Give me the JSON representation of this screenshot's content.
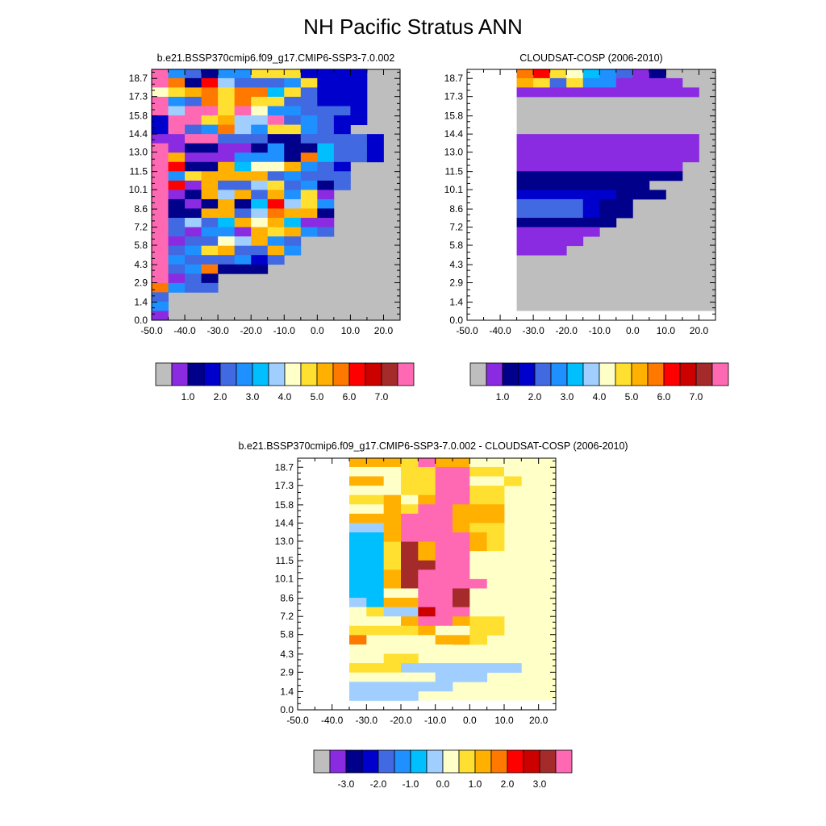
{
  "title": "NH Pacific Stratus ANN",
  "colors": {
    "missing": "#bebebe",
    "fill": [
      "#8a2be2",
      "#00008b",
      "#0000cd",
      "#4169e1",
      "#1e90ff",
      "#00bfff",
      "#a0cfff",
      "#ffffc8",
      "#ffe030",
      "#ffb000",
      "#ff7800",
      "#ff0000",
      "#cd0000",
      "#a52a2a",
      "#ff69b4"
    ]
  },
  "chart_data": [
    {
      "type": "heatmap",
      "title": "b.e21.BSSP370cmip6.f09_g17.CMIP6-SSP3-7.0.002",
      "xticks": [
        "-50.0",
        "-40.0",
        "-30.0",
        "-20.0",
        "-10.0",
        "0.0",
        "10.0",
        "20.0"
      ],
      "yticks": [
        "0.0",
        "1.4",
        "2.9",
        "4.3",
        "5.8",
        "7.2",
        "8.6",
        "10.1",
        "11.5",
        "13.0",
        "14.4",
        "15.8",
        "17.3",
        "18.7"
      ],
      "xlim": [
        -50,
        25
      ],
      "ylim": [
        0,
        19.4
      ],
      "colorbar_labels": [
        "1.0",
        "2.0",
        "3.0",
        "4.0",
        "5.0",
        "6.0",
        "7.0"
      ],
      "grid": {
        "x0": -50,
        "y0": 0,
        "dx": 5,
        "dy": 0.72,
        "ncols": 15,
        "nrows": 27,
        "rows": [
          "PFEDF5LLL0000",
          "PBDJ7EEE5L000",
          "8NKQ9QQ6LC000",
          "PFCQ9Q99EC000",
          "P7PP9P8554CC0",
          "0PP9A77P45C00",
          "0PE5B75995C0",
          "11PP44CDDEEEE0",
          "P1221125DD6CC0",
          "PK111555DB6CC0",
          "PJ22M6IIM5C0",
          "PF9MMMM45CCC",
          "PJ1MCEHNE52C",
          "P1DM7MEA5L1",
          "PD1DMD6J7L5",
          "P2DMM47BMM2",
          "PE7E6K8M611",
          "PE1G51K9AGC",
          "P1EEIHA5E",
          "PE59ACEA5",
          "P5CCC53E",
          "PE5BD2D",
          "P1E2",
          "BFEE",
          "E",
          "5",
          "1"
        ]
      }
    },
    {
      "type": "heatmap",
      "title": "CLOUDSAT-COSP (2006-2010)",
      "xticks": [
        "-50.0",
        "-40.0",
        "-30.0",
        "-20.0",
        "-10.0",
        "0.0",
        "10.0",
        "20.0"
      ],
      "yticks": [
        "0.0",
        "1.4",
        "2.9",
        "4.3",
        "5.8",
        "7.2",
        "8.6",
        "10.1",
        "11.5",
        "13.0",
        "14.4",
        "15.8",
        "17.3",
        "18.7"
      ],
      "xlim": [
        -50,
        25
      ],
      "ylim": [
        0,
        19.4
      ],
      "colorbar_labels": [
        "1.0",
        "2.0",
        "3.0",
        "4.0",
        "5.0",
        "6.0",
        "7.0"
      ],
      "grid": {
        "x0": -35,
        "y0": 0.72,
        "dx": 5,
        "dy": 0.72,
        "ncols": 12,
        "nrows": 26,
        "rows": [
          "AMHI7GBE2",
          "LHBH6GEEEE",
          "1EEEEEEEEEE",
          "",
          "",
          "",
          "",
          "11111111111",
          "11111111111",
          "11111111111",
          "1111111111",
          "2222222222",
          "22222222",
          "333333222",
          "4444322",
          "4444322",
          "222222",
          "11111",
          "1111",
          "111",
          "",
          "",
          "",
          "",
          "",
          ""
        ]
      }
    },
    {
      "type": "heatmap",
      "title": "b.e21.BSSP370cmip6.f09_g17.CMIP6-SSP3-7.0.002 - CLOUDSAT-COSP (2006-2010)",
      "xticks": [
        "-50.0",
        "-40.0",
        "-30.0",
        "-20.0",
        "-10.0",
        "0.0",
        "10.0",
        "20.0"
      ],
      "yticks": [
        "0.0",
        "1.4",
        "2.9",
        "4.3",
        "5.8",
        "7.2",
        "8.6",
        "10.1",
        "11.5",
        "13.0",
        "14.4",
        "15.8",
        "17.3",
        "18.7"
      ],
      "xlim": [
        -50,
        25
      ],
      "ylim": [
        0,
        19.4
      ],
      "colorbar_labels": [
        "-3.0",
        "-2.0",
        "-1.0",
        "0.0",
        "1.0",
        "2.0",
        "3.0"
      ],
      "grid": {
        "x0": -35,
        "y0": 0.72,
        "dx": 5,
        "dy": 0.72,
        "ncols": 12,
        "nrows": 26,
        "rows": [
          "PPPNQLLMMM",
          "MMMNNQQNNM",
          "LLMNNQQMMN",
          "MMMNNQQNN",
          "NNLKPQQNN",
          "MMLNQQPPP",
          "LLPQQQPPP",
          "HHPQQQPNN",
          "GGPQQQQPN",
          "GGNRPQQPN",
          "GGNRPQQMM",
          "GGNRRQQMM",
          "GGPRQQQMM",
          "GGPRQQQQM",
          "GGMMQQRMMM",
          "HGPPQQRMMM",
          "MNHHSQQMM",
          "MMMPQQPNN",
          "NNNNLMMNN",
          "OMMMMLLN",
          "MMMMMM",
          "MMNN",
          "NNNHHHHHHH",
          "MMMMMHHH",
          "HHHHHH",
          "HHHH"
        ]
      }
    }
  ]
}
